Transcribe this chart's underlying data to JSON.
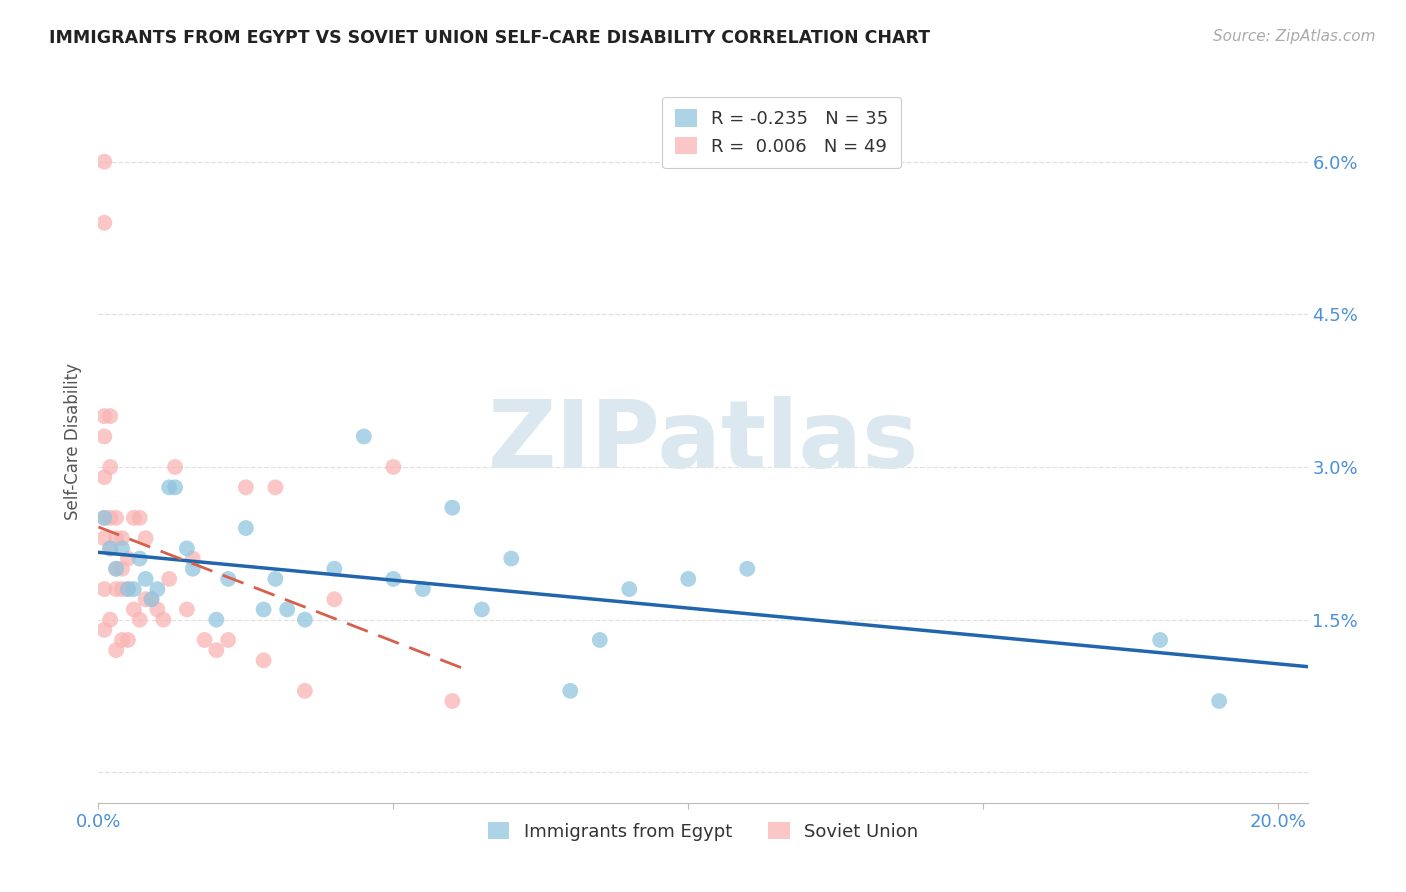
{
  "title": "IMMIGRANTS FROM EGYPT VS SOVIET UNION SELF-CARE DISABILITY CORRELATION CHART",
  "source": "Source: ZipAtlas.com",
  "ylabel": "Self-Care Disability",
  "legend_egypt": "Immigrants from Egypt",
  "legend_soviet": "Soviet Union",
  "r_egypt": "-0.235",
  "n_egypt": "35",
  "r_soviet": "0.006",
  "n_soviet": "49",
  "xlim": [
    0.0,
    0.205
  ],
  "ylim": [
    -0.003,
    0.068
  ],
  "yticks": [
    0.0,
    0.015,
    0.03,
    0.045,
    0.06
  ],
  "ytick_labels": [
    "",
    "1.5%",
    "3.0%",
    "4.5%",
    "6.0%"
  ],
  "xticks": [
    0.0,
    0.05,
    0.1,
    0.15,
    0.2
  ],
  "xtick_labels": [
    "0.0%",
    "",
    "",
    "",
    "20.0%"
  ],
  "egypt_x": [
    0.001,
    0.002,
    0.003,
    0.004,
    0.005,
    0.006,
    0.007,
    0.008,
    0.009,
    0.01,
    0.012,
    0.013,
    0.015,
    0.016,
    0.02,
    0.022,
    0.025,
    0.028,
    0.03,
    0.032,
    0.035,
    0.04,
    0.045,
    0.05,
    0.055,
    0.06,
    0.065,
    0.07,
    0.08,
    0.085,
    0.09,
    0.1,
    0.11,
    0.18,
    0.19
  ],
  "egypt_y": [
    0.025,
    0.022,
    0.02,
    0.022,
    0.018,
    0.018,
    0.021,
    0.019,
    0.017,
    0.018,
    0.028,
    0.028,
    0.022,
    0.02,
    0.015,
    0.019,
    0.024,
    0.016,
    0.019,
    0.016,
    0.015,
    0.02,
    0.033,
    0.019,
    0.018,
    0.026,
    0.016,
    0.021,
    0.008,
    0.013,
    0.018,
    0.019,
    0.02,
    0.013,
    0.007
  ],
  "soviet_x": [
    0.001,
    0.001,
    0.001,
    0.001,
    0.001,
    0.001,
    0.001,
    0.001,
    0.001,
    0.002,
    0.002,
    0.002,
    0.002,
    0.002,
    0.003,
    0.003,
    0.003,
    0.003,
    0.003,
    0.004,
    0.004,
    0.004,
    0.004,
    0.005,
    0.005,
    0.005,
    0.006,
    0.006,
    0.007,
    0.007,
    0.008,
    0.008,
    0.009,
    0.01,
    0.011,
    0.012,
    0.013,
    0.015,
    0.016,
    0.018,
    0.02,
    0.022,
    0.025,
    0.028,
    0.03,
    0.035,
    0.04,
    0.05,
    0.06
  ],
  "soviet_y": [
    0.06,
    0.054,
    0.035,
    0.033,
    0.029,
    0.025,
    0.023,
    0.018,
    0.014,
    0.035,
    0.03,
    0.025,
    0.022,
    0.015,
    0.025,
    0.023,
    0.02,
    0.018,
    0.012,
    0.023,
    0.02,
    0.018,
    0.013,
    0.021,
    0.018,
    0.013,
    0.025,
    0.016,
    0.025,
    0.015,
    0.023,
    0.017,
    0.017,
    0.016,
    0.015,
    0.019,
    0.03,
    0.016,
    0.021,
    0.013,
    0.012,
    0.013,
    0.028,
    0.011,
    0.028,
    0.008,
    0.017,
    0.03,
    0.007
  ],
  "egypt_scatter_color": "#92c5de",
  "soviet_scatter_color": "#f9b4b4",
  "egypt_line_color": "#2166ac",
  "soviet_line_color": "#d6604d",
  "bg_color": "#ffffff",
  "grid_color": "#e0e0e0",
  "axis_color": "#4a90d9",
  "title_color": "#222222",
  "source_color": "#aaaaaa",
  "watermark_text": "ZIPatlas",
  "watermark_color": "#dce8f0"
}
